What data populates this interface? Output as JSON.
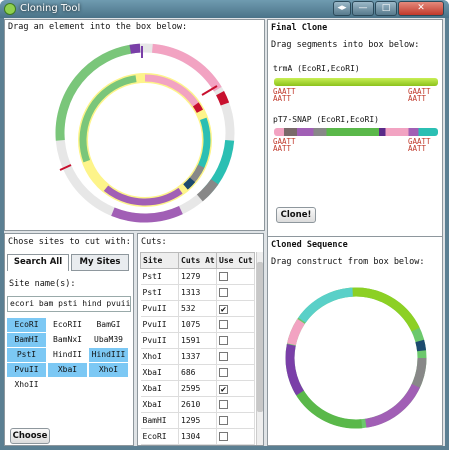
{
  "window": {
    "title": "Cloning Tool",
    "btn_extra": "◂▸",
    "btn_min": "—",
    "btn_max": "□",
    "btn_close": "✕"
  },
  "top_panel": {
    "instruction": "Drag an element into the box below:"
  },
  "final_clone": {
    "title": "Final Clone",
    "instruction": "Drag segments into box below:",
    "segments": [
      {
        "label": "trmA (EcoRI,EcoRI)",
        "color": "#8cc21c"
      },
      {
        "label": "pT7-SNAP (EcoRI,EcoRI)",
        "color": "#5ab84a"
      }
    ],
    "site_top": "GAATT",
    "site_bottom": "AATT",
    "clone_button": "Clone!"
  },
  "cloned_sequence": {
    "title": "Cloned Sequence",
    "instruction": "Drag construct from box below:"
  },
  "sites_panel": {
    "title": "Chose sites to cut with:",
    "tabs": [
      "Search All",
      "My Sites"
    ],
    "site_name_label": "Site name(s):",
    "search_value": "ecori bam psti hind pvuii xbai",
    "enzymes": [
      {
        "name": "EcoRI",
        "selected": true
      },
      {
        "name": "EcoRII",
        "selected": false
      },
      {
        "name": "BamGI",
        "selected": false
      },
      {
        "name": "BamHI",
        "selected": true
      },
      {
        "name": "BamNxI",
        "selected": false
      },
      {
        "name": "UbaM39",
        "selected": false
      },
      {
        "name": "PstI",
        "selected": true
      },
      {
        "name": "HindII",
        "selected": false
      },
      {
        "name": "HindIII",
        "selected": true
      },
      {
        "name": "PvuII",
        "selected": true
      },
      {
        "name": "XbaI",
        "selected": true
      },
      {
        "name": "XhoI",
        "selected": true
      },
      {
        "name": "XhoII",
        "selected": false
      }
    ],
    "choose_button": "Choose"
  },
  "cuts_panel": {
    "title": "Cuts:",
    "columns": [
      "Site",
      "Cuts At",
      "Use Cut"
    ],
    "rows": [
      {
        "site": "PstI",
        "cuts_at": "1279",
        "use": false
      },
      {
        "site": "PstI",
        "cuts_at": "1313",
        "use": false
      },
      {
        "site": "PvuII",
        "cuts_at": "532",
        "use": true
      },
      {
        "site": "PvuII",
        "cuts_at": "1075",
        "use": false
      },
      {
        "site": "PvuII",
        "cuts_at": "1591",
        "use": false
      },
      {
        "site": "XhoI",
        "cuts_at": "1337",
        "use": false
      },
      {
        "site": "XbaI",
        "cuts_at": "686",
        "use": false
      },
      {
        "site": "XbaI",
        "cuts_at": "2595",
        "use": true
      },
      {
        "site": "XbaI",
        "cuts_at": "2610",
        "use": false
      },
      {
        "site": "BamHI",
        "cuts_at": "1295",
        "use": false
      },
      {
        "site": "EcoRI",
        "cuts_at": "1304",
        "use": false
      }
    ]
  }
}
